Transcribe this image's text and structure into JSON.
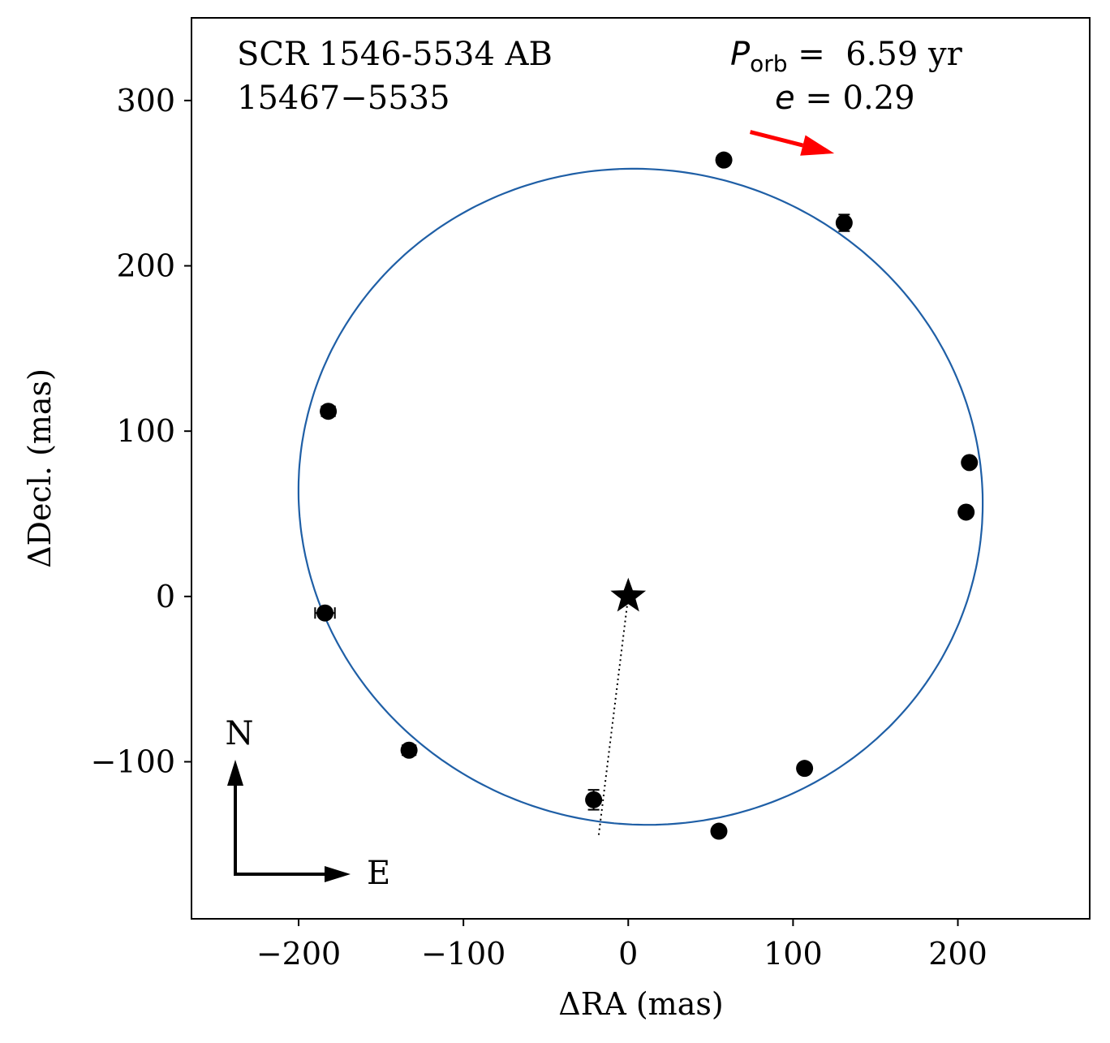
{
  "chart_data": {
    "type": "scatter",
    "title": "",
    "xlabel": "ΔRA  (mas)",
    "ylabel": "ΔDecl.  (mas)",
    "xlim": [
      -265,
      280
    ],
    "ylim": [
      -195,
      350
    ],
    "x_ticks": [
      -200,
      -100,
      0,
      100,
      200
    ],
    "y_ticks": [
      -100,
      0,
      100,
      200,
      300
    ],
    "x_tick_labels": [
      "−200",
      "−100",
      "0",
      "100",
      "200"
    ],
    "y_tick_labels": [
      "−100",
      "0",
      "100",
      "200",
      "300"
    ],
    "grid": false,
    "annotations": {
      "system_name": "SCR 1546-5534 AB",
      "wds_id": "15467−5535",
      "period_symbol": "P",
      "period_subscript": "orb",
      "period_value": " =  6.59 yr",
      "ecc_symbol": "e",
      "ecc_value": " = 0.29",
      "compass_north": "N",
      "compass_east": "E"
    },
    "primary_star": {
      "x": 0,
      "y": 0
    },
    "orbit_color": "#1f5fa6",
    "arrow_color": "#ff0000",
    "motion_arrow": {
      "from": [
        74,
        281
      ],
      "to": [
        125,
        268
      ]
    },
    "line_of_nodes": {
      "from": [
        0,
        0
      ],
      "to": [
        -18,
        -145
      ]
    },
    "orbit_ellipse": {
      "center": [
        7.5,
        60.3
      ],
      "a": 208.0,
      "b": 198.0,
      "rotation_deg": -12
    },
    "series": [
      {
        "points": [
          {
            "x": 58,
            "y": 264,
            "xerr": 0,
            "yerr": 0
          },
          {
            "x": 131,
            "y": 226,
            "xerr": 0,
            "yerr": 5
          },
          {
            "x": -182,
            "y": 112,
            "xerr": 4,
            "yerr": 0
          },
          {
            "x": 207,
            "y": 81,
            "xerr": 0,
            "yerr": 0
          },
          {
            "x": 205,
            "y": 51,
            "xerr": 0,
            "yerr": 0
          },
          {
            "x": -184,
            "y": -10,
            "xerr": 6,
            "yerr": 0
          },
          {
            "x": -133,
            "y": -93,
            "xerr": 4,
            "yerr": 0
          },
          {
            "x": 107,
            "y": -104,
            "xerr": 0,
            "yerr": 0
          },
          {
            "x": -21,
            "y": -123,
            "xerr": 0,
            "yerr": 6
          },
          {
            "x": 55,
            "y": -142,
            "xerr": 0,
            "yerr": 0
          }
        ]
      }
    ]
  }
}
